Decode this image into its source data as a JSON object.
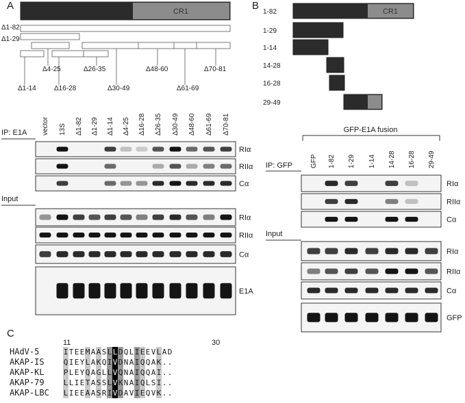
{
  "panels": {
    "a": "A",
    "b": "B",
    "c": "C"
  },
  "panel_a": {
    "cr1_label": "CR1",
    "deletion_labels": [
      "Δ1-82",
      "Δ1-29",
      "Δ4-25",
      "Δ26-35",
      "Δ48-60",
      "Δ70-81",
      "Δ1-14",
      "Δ16-28",
      "Δ30-49",
      "Δ61-69"
    ],
    "ip_label": "IP: E1A",
    "input_label": "Input",
    "lanes": [
      "vector",
      "13S",
      "Δ1-82",
      "Δ1-29",
      "Δ1-14",
      "Δ4-25",
      "Δ16-28",
      "Δ26-35",
      "Δ30-49",
      "Δ48-60",
      "Δ61-69",
      "Δ70-81"
    ],
    "ip_blots": [
      {
        "label": "RIα",
        "bands": [
          0,
          1,
          0,
          0,
          0.8,
          0.2,
          0.15,
          0.7,
          1,
          0.6,
          0.7,
          0.8
        ]
      },
      {
        "label": "RIIα",
        "bands": [
          0,
          1,
          0,
          0,
          0.6,
          0,
          0,
          0.3,
          0.7,
          0.3,
          0.5,
          0.6
        ]
      },
      {
        "label": "Cα",
        "bands": [
          0,
          0.8,
          0,
          0,
          0.6,
          0.4,
          0.4,
          0.9,
          1,
          0.9,
          0.9,
          0.9
        ]
      }
    ],
    "input_blots": [
      {
        "label": "RIα",
        "bands": [
          0.4,
          1,
          0.8,
          0.7,
          0.8,
          0.7,
          0.5,
          0.8,
          0.9,
          0.7,
          0.5,
          1
        ]
      },
      {
        "label": "RIIα",
        "bands": [
          1,
          1,
          1,
          1,
          1,
          1,
          1,
          1,
          1,
          1,
          1,
          1
        ]
      },
      {
        "label": "Cα",
        "bands": [
          0.8,
          0.9,
          0.9,
          0.9,
          0.9,
          0.9,
          0.9,
          0.9,
          0.9,
          0.9,
          0.9,
          0.9
        ]
      },
      {
        "label": "E1A",
        "bands": [
          0,
          1,
          1,
          1,
          1,
          1,
          1,
          1,
          1,
          1,
          1,
          1
        ]
      }
    ]
  },
  "panel_b": {
    "constructs": [
      "1-82",
      "1-29",
      "1-14",
      "14-28",
      "16-28",
      "29-49"
    ],
    "cr1_label": "CR1",
    "fusion_label": "GFP-E1A fusion",
    "ip_label": "IP: GFP",
    "input_label": "Input",
    "lanes": [
      "GFP",
      "1-82",
      "1-29",
      "1-14",
      "14-28",
      "16-28",
      "29-49"
    ],
    "ip_blots": [
      {
        "label": "RIα",
        "bands": [
          0,
          0.9,
          0.8,
          0,
          0.8,
          0.2,
          0
        ]
      },
      {
        "label": "RIIα",
        "bands": [
          0,
          0.8,
          0.9,
          0,
          0.5,
          0.2,
          0
        ]
      },
      {
        "label": "Cα",
        "bands": [
          0,
          1,
          1,
          0,
          1,
          1,
          0
        ]
      }
    ],
    "input_blots": [
      {
        "label": "RIα",
        "bands": [
          0.8,
          0.8,
          0.9,
          0.8,
          0.9,
          0.9,
          0.8
        ]
      },
      {
        "label": "RIIα",
        "bands": [
          0.5,
          0.7,
          0.8,
          0.7,
          1,
          1,
          0.7
        ]
      },
      {
        "label": "Cα",
        "bands": [
          0.9,
          0.9,
          0.9,
          0.9,
          0.9,
          0.9,
          0.9
        ]
      },
      {
        "label": "GFP",
        "bands": [
          1,
          1,
          1,
          1,
          1,
          1,
          1
        ]
      }
    ]
  },
  "panel_c": {
    "start_pos": "11",
    "end_pos": "30",
    "rows": [
      {
        "name": "HAdV-5",
        "seq": "ITEEMAASLLDQLIEEVLAD"
      },
      {
        "name": "AKAP-IS",
        "seq": "QIEYLAKQIVDNAIQQAK.."
      },
      {
        "name": "AKAP-KL",
        "seq": "PLEYQAGLLVQNAIQQAI.."
      },
      {
        "name": "AKAP-79",
        "seq": "LLIETASSLVKNAIQLSI.."
      },
      {
        "name": "AKAP-LBC",
        "seq": "LIEEAASRIVDAVIEQVK.."
      }
    ]
  }
}
